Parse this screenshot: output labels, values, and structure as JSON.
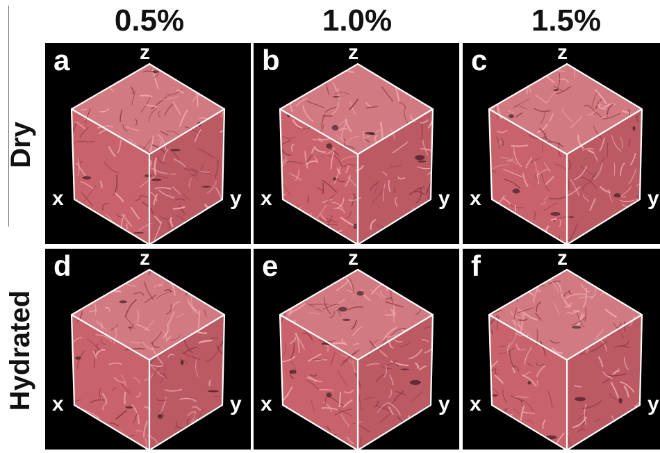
{
  "column_headers": [
    "0.5%",
    "1.0%",
    "1.5%"
  ],
  "row_headers": [
    "Dry",
    "Hydrated"
  ],
  "axis_labels": {
    "x": "x",
    "y": "y",
    "z": "z"
  },
  "panels": [
    {
      "letter": "a"
    },
    {
      "letter": "b"
    },
    {
      "letter": "c"
    },
    {
      "letter": "d"
    },
    {
      "letter": "e"
    },
    {
      "letter": "f"
    }
  ],
  "colors": {
    "background": "#000000",
    "tissue_base": "#c8636b",
    "tissue_light": "#f0a8ae",
    "tissue_dark": "#8e3a43",
    "cube_edge": "#ffffff"
  }
}
